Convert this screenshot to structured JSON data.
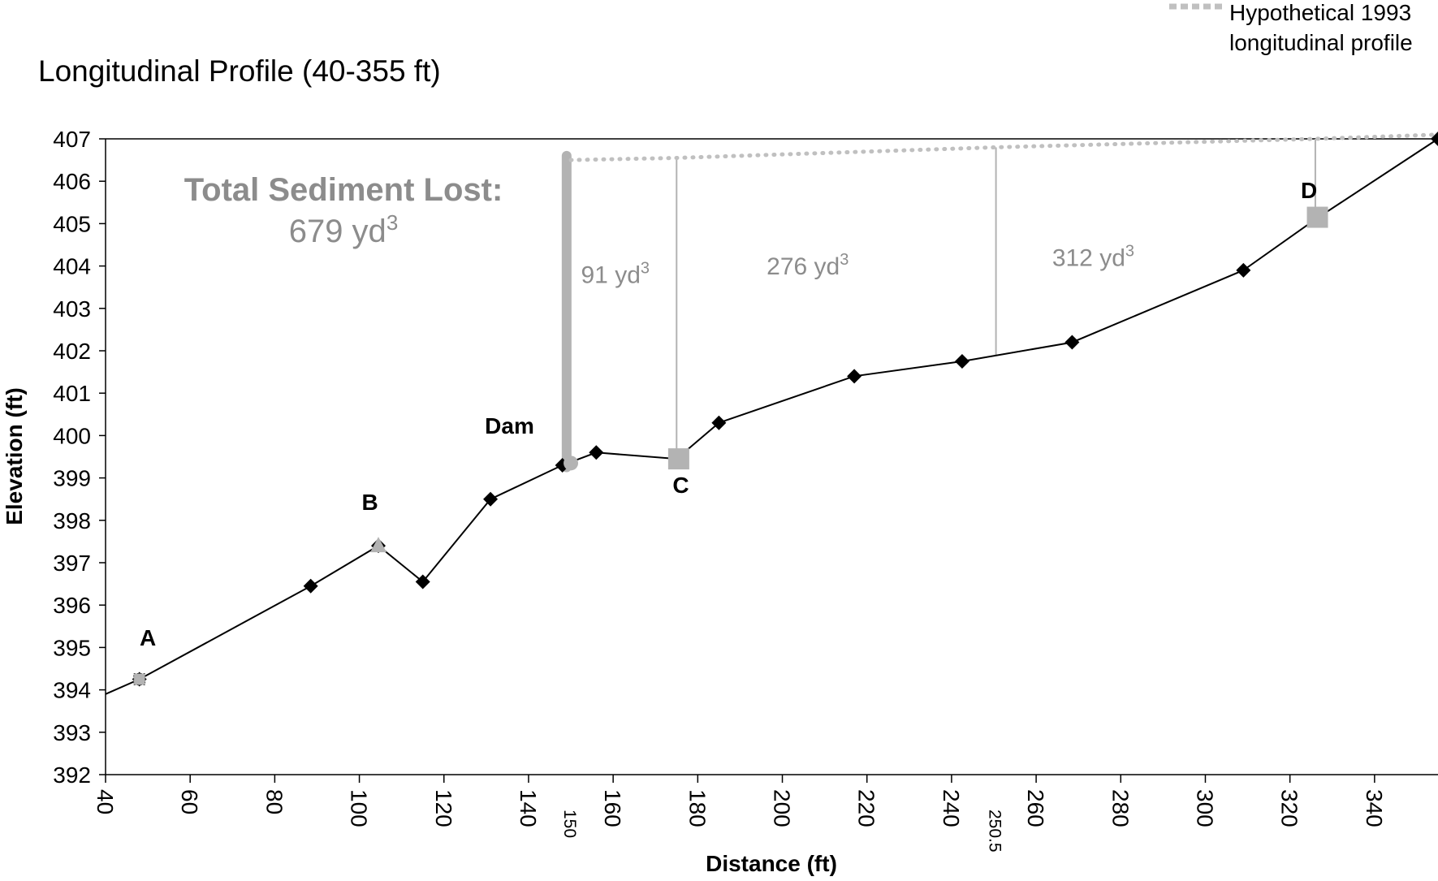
{
  "chart_data": {
    "type": "line",
    "title": "Longitudinal Profile (40-355 ft)",
    "xlabel": "Distance (ft)",
    "ylabel": "Elevation (ft)",
    "xlim": [
      40,
      355
    ],
    "ylim": [
      392,
      407
    ],
    "x_ticks": [
      "40",
      "60",
      "80",
      "100",
      "120",
      "140",
      "160",
      "180",
      "200",
      "220",
      "240",
      "260",
      "280",
      "300",
      "320",
      "340"
    ],
    "y_ticks": [
      "407",
      "406",
      "405",
      "404",
      "403",
      "402",
      "401",
      "400",
      "399",
      "398",
      "397",
      "396",
      "395",
      "394",
      "393",
      "392"
    ],
    "extra_x_ticks": [
      {
        "value": 150,
        "label": "150"
      },
      {
        "value": 250.5,
        "label": "250.5"
      }
    ],
    "legend": {
      "position": "top-right",
      "entries": [
        {
          "label_line1": "Hypothetical 1993",
          "label_line2": "longitudinal profile",
          "style": "dotted",
          "color": "#c0c0c0"
        }
      ]
    },
    "series": [
      {
        "style": "line-diamond",
        "color": "#000000",
        "x": [
          40,
          48,
          88.5,
          104.5,
          115,
          131,
          148,
          156,
          175,
          185,
          217,
          242.5,
          268.5,
          309,
          326,
          355
        ],
        "y": [
          393.9,
          394.25,
          396.45,
          397.4,
          396.55,
          398.5,
          399.3,
          399.6,
          399.45,
          400.3,
          401.4,
          401.75,
          402.2,
          403.9,
          405.1,
          407
        ]
      },
      {
        "name": "Hypothetical 1993 longitudinal profile",
        "style": "dotted",
        "color": "#c0c0c0",
        "x": [
          150,
          175,
          250.5,
          326,
          355
        ],
        "y": [
          406.5,
          406.55,
          406.8,
          407.0,
          407.1
        ]
      }
    ],
    "special_markers": [
      {
        "shape": "square-small",
        "x": 48,
        "y": 394.25,
        "color": "#b3b3b3"
      },
      {
        "shape": "triangle",
        "x": 104.5,
        "y": 397.4,
        "color": "#b3b3b3"
      },
      {
        "shape": "circle",
        "x": 150,
        "y": 399.35,
        "color": "#b3b3b3"
      },
      {
        "shape": "square",
        "x": 175.5,
        "y": 399.45,
        "color": "#b3b3b3"
      },
      {
        "shape": "square",
        "x": 326.5,
        "y": 405.15,
        "color": "#b3b3b3"
      }
    ],
    "point_labels": [
      {
        "text": "A",
        "x": 50,
        "y": 395.05
      },
      {
        "text": "B",
        "x": 102.5,
        "y": 398.25
      },
      {
        "text": "Dam",
        "x": 135.5,
        "y": 400.05
      },
      {
        "text": "C",
        "x": 176,
        "y": 398.65
      },
      {
        "text": "D",
        "x": 324.5,
        "y": 405.6
      }
    ],
    "dam_bar": {
      "x": 149,
      "y_bottom": 399.25,
      "y_top": 406.6,
      "color": "#b3b3b3"
    },
    "dividers": [
      {
        "x": 175,
        "y_bottom": 399.45,
        "y_top": 406.55
      },
      {
        "x": 250.5,
        "y_bottom": 401.9,
        "y_top": 406.8
      },
      {
        "x": 326,
        "y_bottom": 405.15,
        "y_top": 407.0
      }
    ],
    "annotations": {
      "total_label": "Total Sediment Lost:",
      "total_value": "679 yd",
      "total_sup": "3",
      "segments": [
        {
          "value": "91 yd",
          "sup": "3",
          "x": 160.5,
          "y": 403.6
        },
        {
          "value": "276 yd",
          "sup": "3",
          "x": 206,
          "y": 403.8
        },
        {
          "value": "312 yd",
          "sup": "3",
          "x": 273.5,
          "y": 404.0
        }
      ]
    },
    "grid": false
  }
}
